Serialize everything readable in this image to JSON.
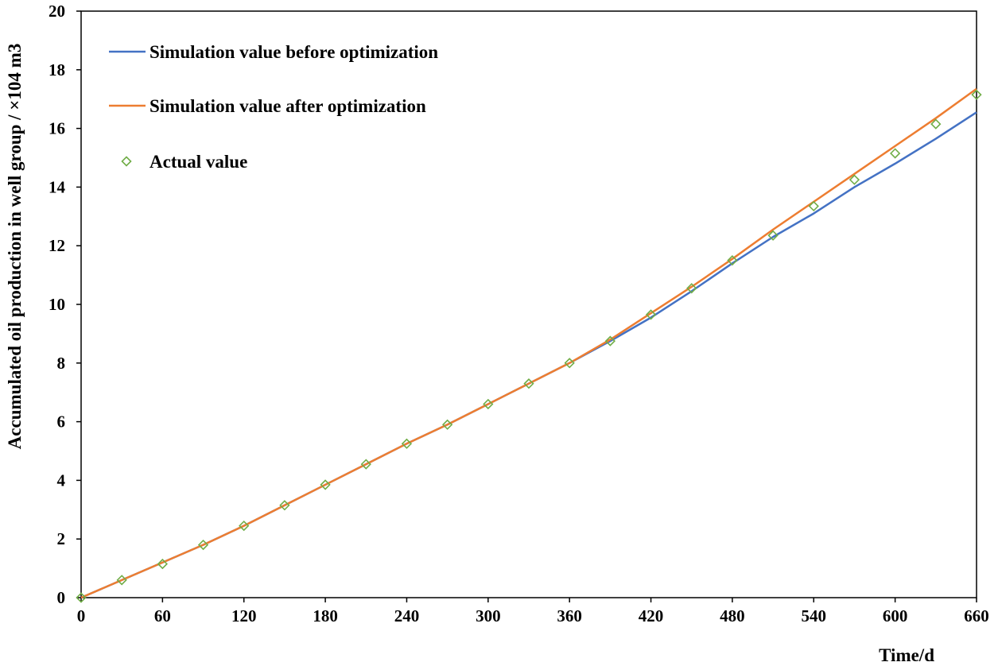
{
  "chart_data": {
    "type": "line",
    "title": "",
    "xlabel": "Time/d",
    "ylabel": "Accumulated oil production in well group / ×104 m3",
    "xlim": [
      0,
      660
    ],
    "ylim": [
      0,
      20
    ],
    "xticks": [
      0,
      60,
      120,
      180,
      240,
      300,
      360,
      420,
      480,
      540,
      600,
      660
    ],
    "yticks": [
      0,
      2,
      4,
      6,
      8,
      10,
      12,
      14,
      16,
      18,
      20
    ],
    "grid": false,
    "legend_position": "top-left",
    "series": [
      {
        "name": "Simulation value before optimization",
        "kind": "line",
        "color": "#4472C4",
        "x": [
          0,
          30,
          60,
          90,
          120,
          150,
          180,
          210,
          240,
          270,
          300,
          330,
          360,
          390,
          420,
          450,
          480,
          510,
          540,
          570,
          600,
          630,
          660
        ],
        "y": [
          0,
          0.6,
          1.2,
          1.8,
          2.45,
          3.15,
          3.85,
          4.55,
          5.25,
          5.9,
          6.6,
          7.3,
          8.0,
          8.75,
          9.55,
          10.45,
          11.4,
          12.3,
          13.1,
          14.0,
          14.8,
          15.65,
          16.55
        ]
      },
      {
        "name": "Simulation value after optimization",
        "kind": "line",
        "color": "#ED7D31",
        "x": [
          0,
          30,
          60,
          90,
          120,
          150,
          180,
          210,
          240,
          270,
          300,
          330,
          360,
          390,
          420,
          450,
          480,
          510,
          540,
          570,
          600,
          630,
          660
        ],
        "y": [
          0,
          0.6,
          1.2,
          1.8,
          2.45,
          3.15,
          3.85,
          4.55,
          5.25,
          5.9,
          6.6,
          7.3,
          8.0,
          8.8,
          9.7,
          10.6,
          11.55,
          12.55,
          13.5,
          14.45,
          15.4,
          16.35,
          17.35
        ]
      },
      {
        "name": "Actual value",
        "kind": "scatter",
        "color": "#70AD47",
        "marker": "diamond",
        "x": [
          0,
          30,
          60,
          90,
          120,
          150,
          180,
          210,
          240,
          270,
          300,
          330,
          360,
          390,
          420,
          450,
          480,
          510,
          540,
          570,
          600,
          630,
          660
        ],
        "y": [
          0,
          0.6,
          1.15,
          1.8,
          2.45,
          3.15,
          3.85,
          4.55,
          5.25,
          5.9,
          6.6,
          7.3,
          8.0,
          8.75,
          9.65,
          10.55,
          11.5,
          12.35,
          13.35,
          14.25,
          15.15,
          16.15,
          17.15
        ]
      }
    ]
  }
}
